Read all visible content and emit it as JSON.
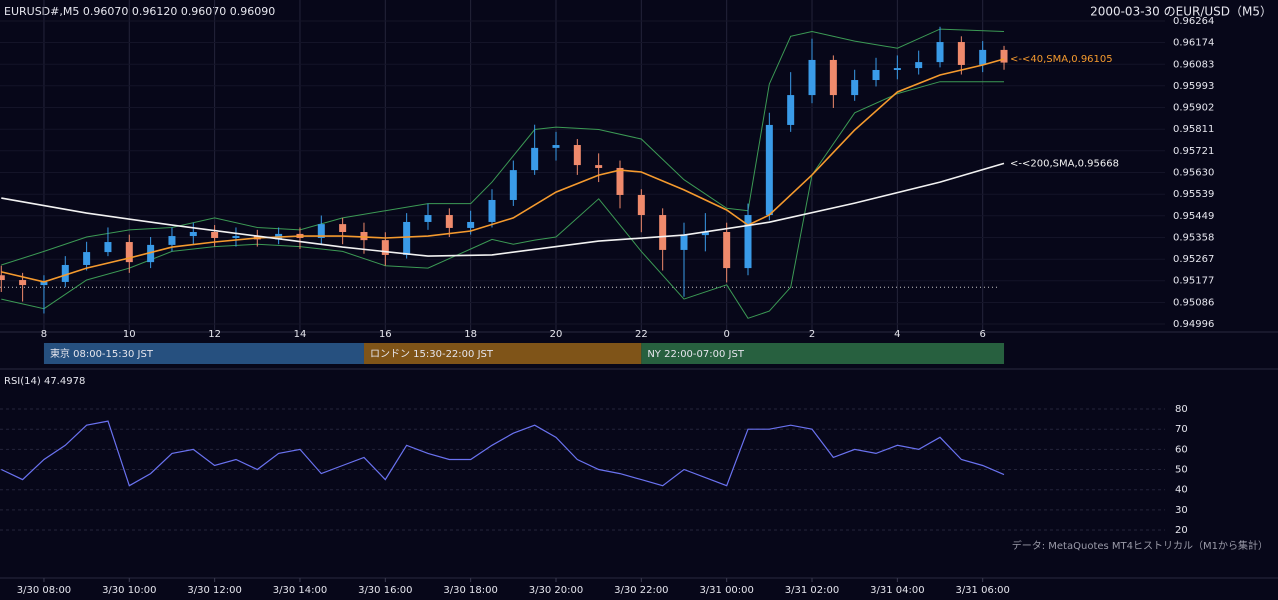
{
  "chart_data": [
    {
      "type": "candlestick",
      "title": "EURUSD#,M5 0.96070 0.96120 0.96070 0.96090",
      "subtitle": "2000-03-30 のEUR/USD（M5）",
      "x": [
        7,
        7.5,
        8,
        8.5,
        9,
        9.5,
        10,
        10.5,
        11,
        11.5,
        12,
        12.5,
        13,
        13.5,
        14,
        14.5,
        15,
        15.5,
        16,
        16.5,
        17,
        17.5,
        18,
        18.5,
        19,
        19.5,
        20,
        20.5,
        21,
        21.5,
        22,
        22.5,
        23,
        23.5,
        24,
        24.5,
        25,
        25.5,
        26,
        26.5,
        27,
        27.5,
        28,
        28.5,
        29,
        29.5,
        30,
        30.5
      ],
      "open": [
        0.952,
        0.9518,
        0.95159,
        0.95172,
        0.95243,
        0.95297,
        0.95339,
        0.95255,
        0.95327,
        0.95364,
        0.95381,
        0.95356,
        0.95364,
        0.9535,
        0.95373,
        0.95356,
        0.95414,
        0.95381,
        0.95347,
        0.95285,
        0.95423,
        0.95452,
        0.95398,
        0.95423,
        0.95515,
        0.9564,
        0.95733,
        0.95745,
        0.95661,
        0.95649,
        0.95536,
        0.95452,
        0.95306,
        0.95368,
        0.95381,
        0.9523,
        0.95452,
        0.95829,
        0.95954,
        0.96101,
        0.95954,
        0.96017,
        0.96059,
        0.96067,
        0.96092,
        0.96176,
        0.9608,
        0.96143
      ],
      "high": [
        0.9524,
        0.9521,
        0.952,
        0.9528,
        0.9534,
        0.954,
        0.9537,
        0.9536,
        0.954,
        0.9542,
        0.9541,
        0.954,
        0.9539,
        0.954,
        0.954,
        0.9545,
        0.9544,
        0.9542,
        0.9538,
        0.9546,
        0.955,
        0.9548,
        0.9547,
        0.9556,
        0.9568,
        0.9583,
        0.958,
        0.9577,
        0.9571,
        0.9568,
        0.9556,
        0.9548,
        0.9542,
        0.9546,
        0.9542,
        0.955,
        0.9588,
        0.9605,
        0.9619,
        0.9612,
        0.9606,
        0.9611,
        0.9612,
        0.9614,
        0.9624,
        0.962,
        0.9618,
        0.9616
      ],
      "low": [
        0.9513,
        0.9509,
        0.9504,
        0.9515,
        0.9522,
        0.9528,
        0.9521,
        0.9523,
        0.953,
        0.9533,
        0.9532,
        0.9532,
        0.9532,
        0.9533,
        0.9531,
        0.9533,
        0.9533,
        0.9529,
        0.9524,
        0.9527,
        0.9539,
        0.9536,
        0.9537,
        0.954,
        0.9549,
        0.9562,
        0.9568,
        0.9562,
        0.9559,
        0.9548,
        0.9538,
        0.9522,
        0.9511,
        0.953,
        0.9517,
        0.952,
        0.9543,
        0.958,
        0.9592,
        0.959,
        0.9593,
        0.9599,
        0.9602,
        0.9604,
        0.9607,
        0.9604,
        0.9605,
        0.9606
      ],
      "close": [
        0.9518,
        0.95159,
        0.95172,
        0.95243,
        0.95297,
        0.95339,
        0.95255,
        0.95327,
        0.95364,
        0.95381,
        0.95356,
        0.95364,
        0.9535,
        0.95373,
        0.95356,
        0.95414,
        0.95381,
        0.95347,
        0.95285,
        0.95423,
        0.95452,
        0.95398,
        0.95423,
        0.95515,
        0.9564,
        0.95733,
        0.95745,
        0.95661,
        0.95649,
        0.95536,
        0.95452,
        0.95306,
        0.95368,
        0.95381,
        0.9523,
        0.95452,
        0.95829,
        0.95954,
        0.96101,
        0.95954,
        0.96017,
        0.96059,
        0.96067,
        0.96092,
        0.96176,
        0.9608,
        0.96143,
        0.9609
      ],
      "up_color": "#3a9be8",
      "down_color": "#ef8a6c",
      "lines": [
        {
          "label": "<-<40,SMA,0.96105",
          "color": "#f59a2e",
          "x": [
            7,
            8,
            9,
            10,
            11,
            12,
            13,
            14,
            15,
            16,
            17,
            18,
            19,
            20,
            21,
            21.5,
            22,
            23,
            24,
            24.5,
            25,
            26,
            27,
            28,
            29,
            30,
            30.5
          ],
          "values": [
            0.95214,
            0.95172,
            0.9523,
            0.95272,
            0.95318,
            0.95339,
            0.95356,
            0.95364,
            0.95364,
            0.95356,
            0.95364,
            0.95385,
            0.9544,
            0.95548,
            0.95619,
            0.9564,
            0.95632,
            0.95557,
            0.95473,
            0.9541,
            0.95452,
            0.9562,
            0.95808,
            0.95967,
            0.96038,
            0.9608,
            0.96105
          ]
        },
        {
          "label": "<-<200,SMA,0.95668",
          "color": "#f2f2f2",
          "x": [
            7,
            9,
            11,
            13,
            15,
            17,
            18.5,
            21,
            23,
            25,
            27,
            29,
            30.5
          ],
          "values": [
            0.95523,
            0.9546,
            0.9541,
            0.95364,
            0.95318,
            0.9528,
            0.95285,
            0.95343,
            0.95368,
            0.95422,
            0.95502,
            0.9559,
            0.95668
          ]
        }
      ],
      "bands": {
        "color": "#3c9a55",
        "x": [
          7,
          8,
          9,
          10,
          11,
          12,
          13,
          14,
          15,
          16,
          17,
          18,
          18.5,
          19,
          19.5,
          20,
          21,
          22,
          23,
          24,
          24.5,
          25,
          25.5,
          26,
          27,
          28,
          29,
          30.5
        ],
        "upper": [
          0.95243,
          0.953,
          0.9536,
          0.9539,
          0.954,
          0.9544,
          0.954,
          0.9539,
          0.9544,
          0.9547,
          0.955,
          0.955,
          0.9559,
          0.957,
          0.9581,
          0.9582,
          0.9581,
          0.9577,
          0.956,
          0.9548,
          0.9547,
          0.96,
          0.962,
          0.9622,
          0.9618,
          0.9615,
          0.9623,
          0.9622
        ],
        "lower": [
          0.951,
          0.9506,
          0.9518,
          0.9523,
          0.953,
          0.9532,
          0.9533,
          0.9532,
          0.953,
          0.9524,
          0.9523,
          0.9531,
          0.9535,
          0.9533,
          0.95347,
          0.9536,
          0.9552,
          0.953,
          0.951,
          0.9516,
          0.9502,
          0.9505,
          0.9515,
          0.9562,
          0.9588,
          0.9596,
          0.9601,
          0.9601
        ]
      },
      "hline": {
        "value": 0.9515,
        "color": "#c8c8c8"
      },
      "xlim": [
        6.97,
        30.64
      ],
      "xticks": [
        8,
        10,
        12,
        14,
        16,
        18,
        20,
        22,
        {
          "value": 24,
          "label": "0"
        },
        {
          "value": 26,
          "label": "2"
        },
        {
          "value": 28,
          "label": "4"
        },
        {
          "value": 30,
          "label": "6"
        }
      ],
      "ylim": [
        0.94996,
        0.96264
      ],
      "yticks": [
        0.96264,
        0.96174,
        0.96083,
        0.95993,
        0.95902,
        0.95811,
        0.95721,
        {
          "value": 0.9563,
          "label": "0.95630"
        },
        0.95539,
        0.95449,
        0.95358,
        0.95267,
        0.95177,
        0.95086,
        0.94996
      ],
      "grid": true,
      "sessions": [
        {
          "label": "東京 08:00-15:30 JST",
          "start": 8,
          "end": 15.5,
          "color": "#26507f"
        },
        {
          "label": "ロンドン 15:30-22:00 JST",
          "start": 15.5,
          "end": 22,
          "color": "#7f5418"
        },
        {
          "label": "NY 22:00-07:00 JST",
          "start": 22,
          "end": 30.5,
          "color": "#27603f"
        }
      ]
    },
    {
      "type": "line",
      "title": "RSI(14) 47.4978",
      "x": [
        7,
        7.5,
        8,
        8.5,
        9,
        9.5,
        10,
        10.5,
        11,
        11.5,
        12,
        12.5,
        13,
        13.5,
        14,
        14.5,
        15,
        15.5,
        16,
        16.5,
        17,
        17.5,
        18,
        18.5,
        19,
        19.5,
        20,
        20.5,
        21,
        21.5,
        22,
        22.5,
        23,
        23.5,
        24,
        24.5,
        25,
        25.5,
        26,
        26.5,
        27,
        27.5,
        28,
        28.5,
        29,
        29.5,
        30,
        30.5
      ],
      "values": [
        50,
        45,
        55,
        62,
        72,
        74,
        42,
        48,
        58,
        60,
        52,
        55,
        50,
        58,
        60,
        48,
        52,
        56,
        45,
        62,
        58,
        55,
        55,
        62,
        68,
        72,
        66,
        55,
        50,
        48,
        45,
        42,
        50,
        46,
        42,
        70,
        70,
        72,
        70,
        56,
        60,
        58,
        62,
        60,
        66,
        55,
        52,
        47.4978
      ],
      "color": "#6a72f0",
      "xlim": [
        6.97,
        30.64
      ],
      "xticks": [
        {
          "value": 8,
          "label": "3/30 08:00"
        },
        {
          "value": 10,
          "label": "3/30 10:00"
        },
        {
          "value": 12,
          "label": "3/30 12:00"
        },
        {
          "value": 14,
          "label": "3/30 14:00"
        },
        {
          "value": 16,
          "label": "3/30 16:00"
        },
        {
          "value": 18,
          "label": "3/30 18:00"
        },
        {
          "value": 20,
          "label": "3/30 20:00"
        },
        {
          "value": 22,
          "label": "3/30 22:00"
        },
        {
          "value": 24,
          "label": "3/31 00:00"
        },
        {
          "value": 26,
          "label": "3/31 02:00"
        },
        {
          "value": 28,
          "label": "3/31 04:00"
        },
        {
          "value": 30,
          "label": "3/31 06:00"
        }
      ],
      "ylim": [
        -2.3,
        94.4
      ],
      "yticks": [
        80,
        70,
        60,
        50,
        40,
        30,
        20
      ],
      "grid": true,
      "note": "データ: MetaQuotes MT4ヒストリカル（M1から集計）"
    }
  ]
}
